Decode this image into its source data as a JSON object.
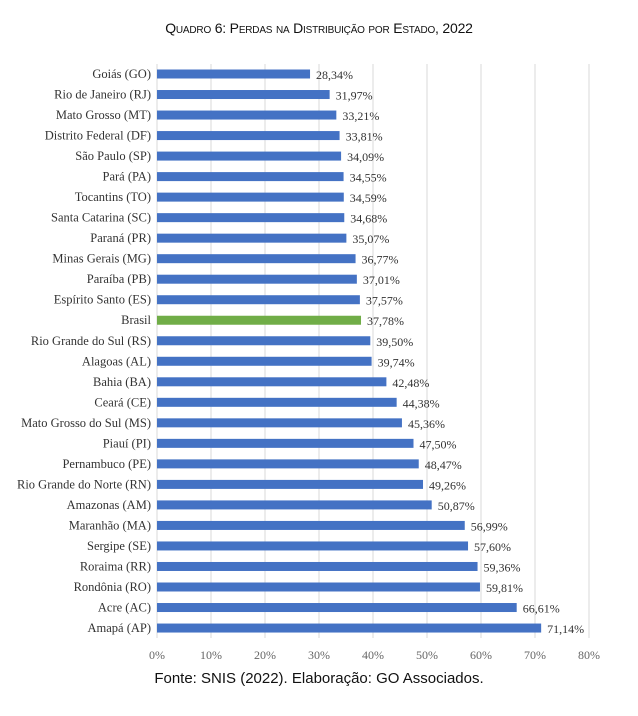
{
  "chart_data": {
    "type": "bar",
    "orientation": "horizontal",
    "title": "Quadro 6: Perdas na Distribuição por Estado, 2022",
    "source": "Fonte: SNIS (2022). Elaboração: GO Associados.",
    "categories": [
      "Goiás (GO)",
      "Rio de Janeiro (RJ)",
      "Mato Grosso (MT)",
      "Distrito Federal (DF)",
      "São Paulo (SP)",
      "Pará (PA)",
      "Tocantins (TO)",
      "Santa Catarina (SC)",
      "Paraná (PR)",
      "Minas Gerais (MG)",
      "Paraíba (PB)",
      "Espírito Santo (ES)",
      "Brasil",
      "Rio Grande do Sul (RS)",
      "Alagoas (AL)",
      "Bahia (BA)",
      "Ceará (CE)",
      "Mato Grosso do Sul (MS)",
      "Piauí (PI)",
      "Pernambuco (PE)",
      "Rio Grande do Norte (RN)",
      "Amazonas (AM)",
      "Maranhão (MA)",
      "Sergipe (SE)",
      "Roraima (RR)",
      "Rondônia (RO)",
      "Acre (AC)",
      "Amapá (AP)"
    ],
    "values": [
      28.34,
      31.97,
      33.21,
      33.81,
      34.09,
      34.55,
      34.59,
      34.68,
      35.07,
      36.77,
      37.01,
      37.57,
      37.78,
      39.5,
      39.74,
      42.48,
      44.38,
      45.36,
      47.5,
      48.47,
      49.26,
      50.87,
      56.99,
      57.6,
      59.36,
      59.81,
      66.61,
      71.14
    ],
    "data_labels": [
      "28,34%",
      "31,97%",
      "33,21%",
      "33,81%",
      "34,09%",
      "34,55%",
      "34,59%",
      "34,68%",
      "35,07%",
      "36,77%",
      "37,01%",
      "37,57%",
      "37,78%",
      "39,50%",
      "39,74%",
      "42,48%",
      "44,38%",
      "45,36%",
      "47,50%",
      "48,47%",
      "49,26%",
      "50,87%",
      "56,99%",
      "57,60%",
      "59,36%",
      "59,81%",
      "66,61%",
      "71,14%"
    ],
    "xlim": [
      0,
      80
    ],
    "xticks": [
      "0%",
      "10%",
      "20%",
      "30%",
      "40%",
      "50%",
      "60%",
      "70%",
      "80%"
    ],
    "xlabel": "",
    "ylabel": "",
    "grid": "vertical",
    "highlight_category": "Brasil",
    "colors": {
      "bar": "#4472C4",
      "highlight": "#70AD47",
      "grid": "#D9D9D9"
    }
  }
}
